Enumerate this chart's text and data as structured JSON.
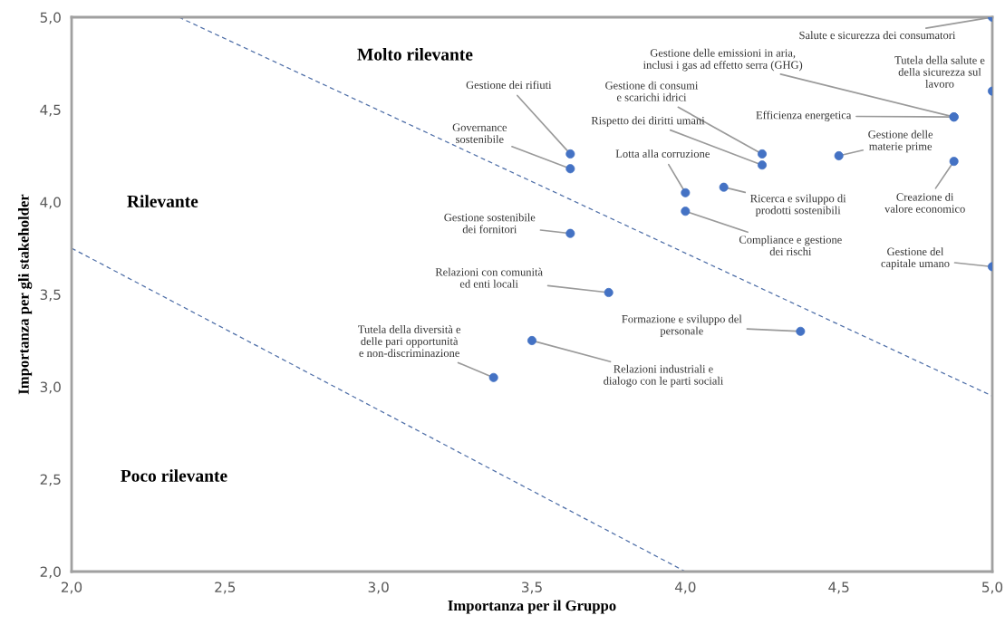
{
  "chart_data": {
    "type": "scatter",
    "xlabel": "Importanza per il Gruppo",
    "ylabel": "Importanza per gli stakeholder",
    "xlim": [
      2.0,
      5.0
    ],
    "ylim": [
      2.0,
      5.0
    ],
    "xticks": [
      {
        "value": 2.0,
        "label": "2,0"
      },
      {
        "value": 2.5,
        "label": "2,5"
      },
      {
        "value": 3.0,
        "label": "3,0"
      },
      {
        "value": 3.5,
        "label": "3,5"
      },
      {
        "value": 4.0,
        "label": "4,0"
      },
      {
        "value": 4.5,
        "label": "4,5"
      },
      {
        "value": 5.0,
        "label": "5,0"
      }
    ],
    "yticks": [
      {
        "value": 2.0,
        "label": "2,0"
      },
      {
        "value": 2.5,
        "label": "2,5"
      },
      {
        "value": 3.0,
        "label": "3,0"
      },
      {
        "value": 3.5,
        "label": "3,5"
      },
      {
        "value": 4.0,
        "label": "4,0"
      },
      {
        "value": 4.5,
        "label": "4,5"
      },
      {
        "value": 5.0,
        "label": "5,0"
      }
    ],
    "grid": false,
    "series": [
      {
        "marker": "circle",
        "color": "#4472c4",
        "x": [
          5.0,
          5.0,
          4.875,
          4.875,
          4.5,
          4.875,
          5.0,
          4.25,
          4.25,
          4.0,
          4.125,
          4.0,
          3.625,
          3.625,
          3.625,
          3.75,
          4.375,
          3.5,
          3.375
        ],
        "values": [
          5.0,
          4.6,
          4.46,
          4.46,
          4.25,
          4.22,
          3.65,
          4.26,
          4.2,
          4.05,
          4.08,
          3.95,
          4.26,
          4.18,
          3.83,
          3.51,
          3.3,
          3.25,
          3.05
        ]
      },
      {
        "type": "line",
        "marker": "none",
        "color": "#4f6fa8",
        "line_style": "dashed",
        "x": [
          2.35,
          5.0
        ],
        "values": [
          5.0,
          2.95
        ]
      },
      {
        "type": "line",
        "marker": "none",
        "color": "#4f6fa8",
        "line_style": "dashed",
        "x": [
          2.0,
          4.0
        ],
        "values": [
          3.75,
          2.0
        ]
      }
    ],
    "annotations": [
      {
        "text": "Salute e sicurezza dei consumatori",
        "x": 5.0,
        "y": 5.0
      },
      {
        "text": "Tutela della salute e\ndella sicurezza sul\nlavoro",
        "x": 5.0,
        "y": 4.6
      },
      {
        "text": "Efficienza energetica",
        "x": 4.875,
        "y": 4.46
      },
      {
        "text": "Gestione delle emissioni in aria,\ninclusi i gas ad effetto serra (GHG)",
        "x": 4.875,
        "y": 4.46
      },
      {
        "text": "Gestione delle\nmaterie prime",
        "x": 4.5,
        "y": 4.25
      },
      {
        "text": "Creazione di\nvalore economico",
        "x": 4.875,
        "y": 4.22
      },
      {
        "text": "Gestione del\ncapitale umano",
        "x": 5.0,
        "y": 3.65
      },
      {
        "text": "Gestione di consumi\ne scarichi idrici",
        "x": 4.25,
        "y": 4.26
      },
      {
        "text": "Rispetto dei diritti umani",
        "x": 4.25,
        "y": 4.2
      },
      {
        "text": "Lotta alla corruzione",
        "x": 4.0,
        "y": 4.05
      },
      {
        "text": "Ricerca e sviluppo di\nprodotti sostenibili",
        "x": 4.125,
        "y": 4.08
      },
      {
        "text": "Compliance e gestione\ndei rischi",
        "x": 4.0,
        "y": 3.95
      },
      {
        "text": "Gestione dei rifiuti",
        "x": 3.625,
        "y": 4.26
      },
      {
        "text": "Governance\nsostenibile",
        "x": 3.625,
        "y": 4.18
      },
      {
        "text": "Gestione sostenibile\ndei fornitori",
        "x": 3.625,
        "y": 3.83
      },
      {
        "text": "Relazioni con comunità\ned enti locali",
        "x": 3.75,
        "y": 3.51
      },
      {
        "text": "Formazione e sviluppo del\npersonale",
        "x": 4.375,
        "y": 3.3
      },
      {
        "text": "Relazioni industriali e\ndialogo con le parti sociali",
        "x": 3.5,
        "y": 3.25
      },
      {
        "text": "Tutela della diversità e\ndelle pari opportunità\ne non-discriminazione",
        "x": 3.375,
        "y": 3.05
      },
      "Molto rilevante",
      "Rilevante",
      "Poco rilevante"
    ]
  }
}
